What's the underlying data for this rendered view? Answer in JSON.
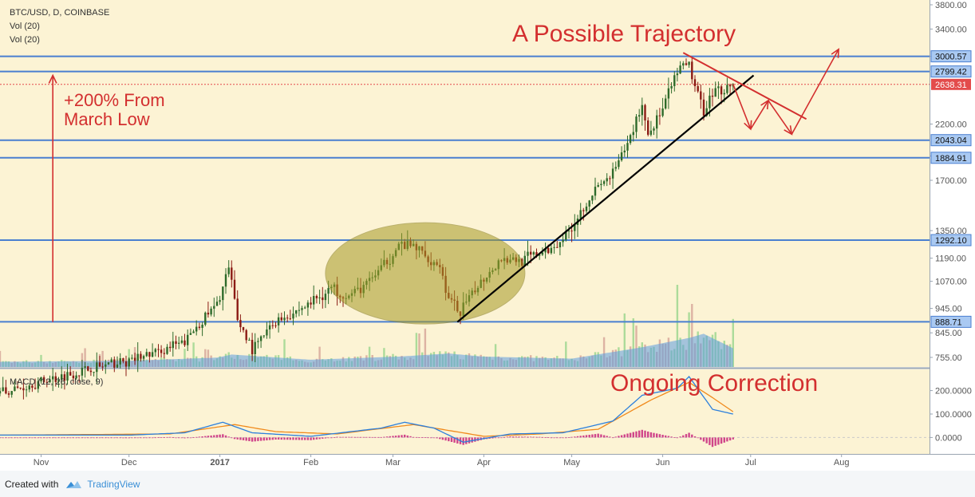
{
  "header": {
    "symbol": "BTC/USD, D, COINBASE",
    "volume_labels": [
      "Vol (20)",
      "Vol (20)"
    ],
    "macd_label": "MACD (12, 26, close, 9)"
  },
  "annotations": {
    "trajectory": "A Possible Trajectory",
    "gain_line1": "+200% From",
    "gain_line2": "March Low",
    "correction": "Ongoing Correction"
  },
  "footer": {
    "created_with": "Created with",
    "brand": "TradingView"
  },
  "colors": {
    "background": "#fcf3d4",
    "level_line": "#4a7fd0",
    "up_candle": "#2e6a2a",
    "down_candle": "#8b1b14",
    "trend_line": "#000000",
    "annotation": "#d32f2f",
    "volume_up": "#9ed68f",
    "volume_down": "#d7a79a",
    "volume_ma": "#5b9ae0",
    "macd_line": "#2b7fdc",
    "signal_line": "#f08a1c",
    "histogram": "#d0458a",
    "ellipse": "#a59a25",
    "price_badge": "#e34b4b"
  },
  "chart_data": {
    "type": "candlestick",
    "title": "BTC/USD, D, COINBASE",
    "price_axis": {
      "scale": "log",
      "ticks": [
        "3800.00",
        "3400.00",
        "3000.00",
        "2200.00",
        "1900.00",
        "1700.00",
        "1350.00",
        "1190.00",
        "1070.00",
        "945.00",
        "845.00",
        "755.00"
      ],
      "tick_values": [
        3800,
        3400,
        3000,
        2200,
        1900,
        1700,
        1350,
        1190,
        1070,
        945,
        845,
        755
      ]
    },
    "macd_axis": {
      "ticks": [
        "200.0000",
        "100.0000",
        "0.0000"
      ],
      "tick_values": [
        200,
        100,
        0
      ],
      "range": [
        -60,
        260
      ]
    },
    "x_axis": {
      "ticks": [
        "Nov",
        "Dec",
        "2017",
        "Feb",
        "Mar",
        "Apr",
        "May",
        "Jun",
        "Jul",
        "Aug"
      ],
      "tick_dates": [
        "2016-11-01",
        "2016-12-01",
        "2017-01-01",
        "2017-02-01",
        "2017-03-01",
        "2017-04-01",
        "2017-05-01",
        "2017-06-01",
        "2017-07-01",
        "2017-08-01"
      ],
      "range": [
        "2016-10-18",
        "2017-08-31"
      ]
    },
    "horizontal_levels": [
      {
        "label": "3000.57",
        "value": 3000.57
      },
      {
        "label": "2799.42",
        "value": 2799.42
      },
      {
        "label": "2043.04",
        "value": 2043.04
      },
      {
        "label": "1884.91",
        "value": 1884.91
      },
      {
        "label": "1292.10",
        "value": 1292.1
      },
      {
        "label": "888.71",
        "value": 888.71
      }
    ],
    "last_price": {
      "label": "2638.31",
      "value": 2638.31
    },
    "price_anchors": [
      [
        "2016-10-18",
        640
      ],
      [
        "2016-11-15",
        710
      ],
      [
        "2016-11-30",
        740
      ],
      [
        "2016-12-10",
        770
      ],
      [
        "2016-12-20",
        810
      ],
      [
        "2016-12-26",
        900
      ],
      [
        "2016-12-31",
        960
      ],
      [
        "2017-01-04",
        1130
      ],
      [
        "2017-01-07",
        900
      ],
      [
        "2017-01-12",
        780
      ],
      [
        "2017-01-20",
        890
      ],
      [
        "2017-01-31",
        960
      ],
      [
        "2017-02-08",
        1040
      ],
      [
        "2017-02-14",
        1000
      ],
      [
        "2017-02-20",
        1060
      ],
      [
        "2017-02-26",
        1150
      ],
      [
        "2017-03-03",
        1260
      ],
      [
        "2017-03-09",
        1250
      ],
      [
        "2017-03-12",
        1200
      ],
      [
        "2017-03-17",
        1150
      ],
      [
        "2017-03-20",
        980
      ],
      [
        "2017-03-24",
        930
      ],
      [
        "2017-03-31",
        1070
      ],
      [
        "2017-04-07",
        1190
      ],
      [
        "2017-04-14",
        1180
      ],
      [
        "2017-04-24",
        1240
      ],
      [
        "2017-04-30",
        1350
      ],
      [
        "2017-05-08",
        1600
      ],
      [
        "2017-05-15",
        1750
      ],
      [
        "2017-05-20",
        2000
      ],
      [
        "2017-05-25",
        2400
      ],
      [
        "2017-05-27",
        2100
      ],
      [
        "2017-06-01",
        2350
      ],
      [
        "2017-06-06",
        2800
      ],
      [
        "2017-06-10",
        2900
      ],
      [
        "2017-06-12",
        2600
      ],
      [
        "2017-06-15",
        2350
      ],
      [
        "2017-06-18",
        2550
      ],
      [
        "2017-06-25",
        2638
      ]
    ],
    "volume_anchors": [
      [
        "2016-10-18",
        0.05
      ],
      [
        "2016-12-01",
        0.06
      ],
      [
        "2016-12-31",
        0.09
      ],
      [
        "2017-01-05",
        0.12
      ],
      [
        "2017-02-01",
        0.07
      ],
      [
        "2017-03-03",
        0.1
      ],
      [
        "2017-03-20",
        0.13
      ],
      [
        "2017-04-01",
        0.1
      ],
      [
        "2017-05-01",
        0.08
      ],
      [
        "2017-05-25",
        0.19
      ],
      [
        "2017-06-10",
        0.28
      ],
      [
        "2017-06-15",
        0.32
      ],
      [
        "2017-06-25",
        0.18
      ]
    ],
    "macd_anchors": [
      [
        "2016-10-18",
        10
      ],
      [
        "2016-12-01",
        10
      ],
      [
        "2016-12-20",
        20
      ],
      [
        "2017-01-02",
        65
      ],
      [
        "2017-01-12",
        20
      ],
      [
        "2017-02-01",
        5
      ],
      [
        "2017-02-25",
        40
      ],
      [
        "2017-03-05",
        65
      ],
      [
        "2017-03-15",
        40
      ],
      [
        "2017-03-25",
        -20
      ],
      [
        "2017-04-10",
        15
      ],
      [
        "2017-04-28",
        20
      ],
      [
        "2017-05-15",
        70
      ],
      [
        "2017-05-25",
        180
      ],
      [
        "2017-06-06",
        210
      ],
      [
        "2017-06-10",
        260
      ],
      [
        "2017-06-18",
        120
      ],
      [
        "2017-06-25",
        100
      ]
    ],
    "signal_anchors": [
      [
        "2016-10-18",
        10
      ],
      [
        "2016-12-15",
        15
      ],
      [
        "2017-01-06",
        55
      ],
      [
        "2017-01-20",
        25
      ],
      [
        "2017-02-10",
        15
      ],
      [
        "2017-03-08",
        55
      ],
      [
        "2017-03-20",
        30
      ],
      [
        "2017-04-01",
        5
      ],
      [
        "2017-04-20",
        15
      ],
      [
        "2017-05-10",
        35
      ],
      [
        "2017-05-28",
        160
      ],
      [
        "2017-06-10",
        235
      ],
      [
        "2017-06-18",
        170
      ],
      [
        "2017-06-25",
        110
      ]
    ],
    "annotation_marks": {
      "vertical_arrow": {
        "from": [
          "2016-11-05",
          888
        ],
        "to": [
          "2016-11-05",
          2750
        ]
      },
      "trend_line": {
        "from": [
          "2017-03-23",
          888
        ],
        "to": [
          "2017-07-02",
          2750
        ]
      },
      "descending_line": {
        "from": [
          "2017-06-08",
          3050
        ],
        "to": [
          "2017-07-20",
          2250
        ]
      },
      "projection_path": [
        [
          "2017-06-25",
          2640
        ],
        [
          "2017-07-01",
          2150
        ],
        [
          "2017-07-07",
          2450
        ],
        [
          "2017-07-15",
          2100
        ],
        [
          "2017-07-31",
          3100
        ]
      ],
      "ellipse": {
        "center": [
          "2017-03-12",
          1080
        ],
        "date_radius_days": 20,
        "price_range": [
          880,
          1400
        ]
      }
    }
  }
}
